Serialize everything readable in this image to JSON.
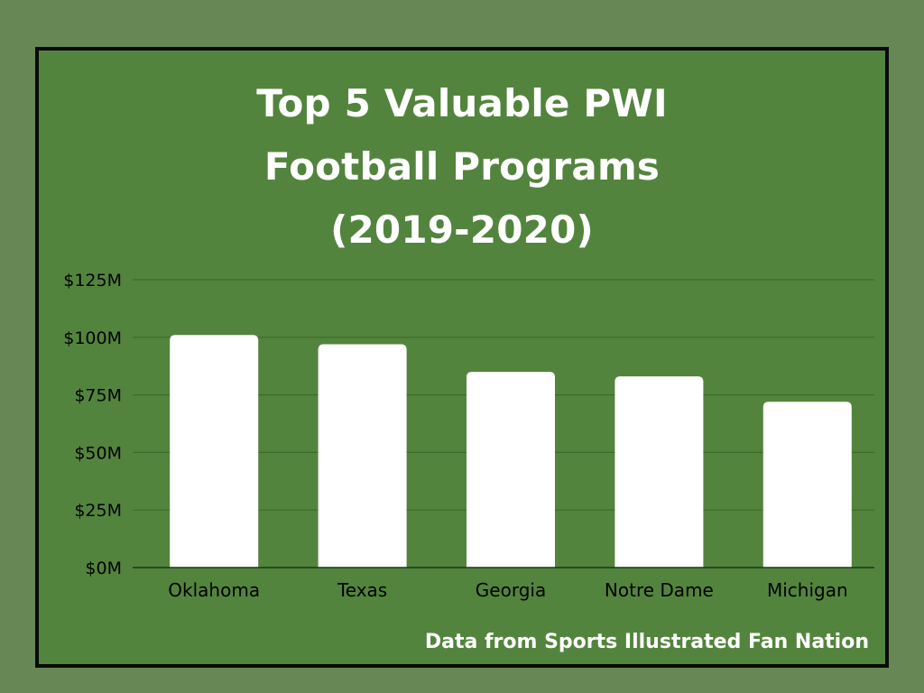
{
  "chart_data": {
    "type": "bar",
    "title_lines": [
      "Top 5 Valuable PWI",
      "Football Programs",
      "(2019-2020)"
    ],
    "categories": [
      "Oklahoma",
      "Texas",
      "Georgia",
      "Notre Dame",
      "Michigan"
    ],
    "values": [
      101,
      97,
      85,
      83,
      72
    ],
    "unit": "M",
    "ylim": [
      0,
      125
    ],
    "yticks": [
      0,
      25,
      50,
      75,
      100,
      125
    ],
    "ytick_labels": [
      "$0M",
      "$25M",
      "$50M",
      "$75M",
      "$100M",
      "$125M"
    ],
    "xlabel": "",
    "ylabel": "",
    "grid": true,
    "colors": {
      "bar": "#ffffff",
      "grid": "#3c6a2c",
      "axis": "#1b3a12",
      "tick_text": "#000000"
    }
  },
  "source_note": "Data from Sports Illustrated Fan Nation"
}
